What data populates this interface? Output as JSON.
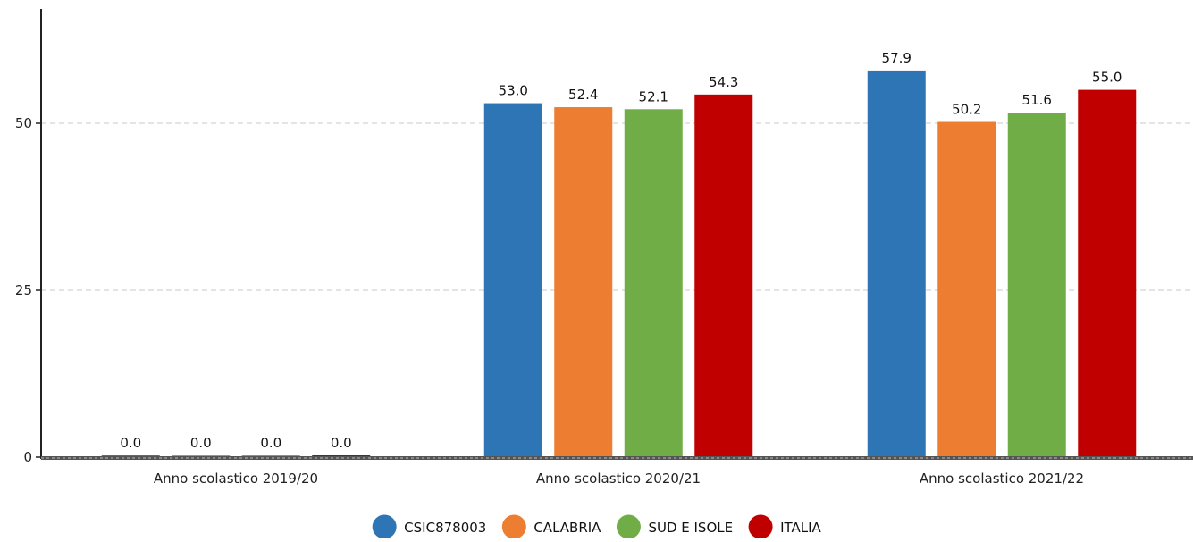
{
  "chart_data": {
    "type": "bar",
    "categories": [
      "Anno scolastico 2019/20",
      "Anno scolastico 2020/21",
      "Anno scolastico 2021/22"
    ],
    "series": [
      {
        "name": "CSIC878003",
        "color": "#2e75b6",
        "values": [
          0.0,
          53.0,
          57.9
        ]
      },
      {
        "name": "CALABRIA",
        "color": "#ed7d31",
        "values": [
          0.0,
          52.4,
          50.2
        ]
      },
      {
        "name": "SUD E ISOLE",
        "color": "#70ad47",
        "values": [
          0.0,
          52.1,
          51.6
        ]
      },
      {
        "name": "ITALIA",
        "color": "#c00000",
        "values": [
          0.0,
          54.3,
          55.0
        ]
      }
    ],
    "value_labels": [
      [
        "0.0",
        "53.0",
        "57.9"
      ],
      [
        "0.0",
        "52.4",
        "50.2"
      ],
      [
        "0.0",
        "52.1",
        "51.6"
      ],
      [
        "0.0",
        "54.3",
        "55.0"
      ]
    ],
    "yticks": [
      0,
      25,
      50
    ],
    "ytick_labels": [
      "0",
      "25",
      "50"
    ],
    "ylim": [
      0,
      67
    ],
    "grid": true,
    "legend_position": "bottom-center",
    "title": "",
    "xlabel": "",
    "ylabel": ""
  }
}
